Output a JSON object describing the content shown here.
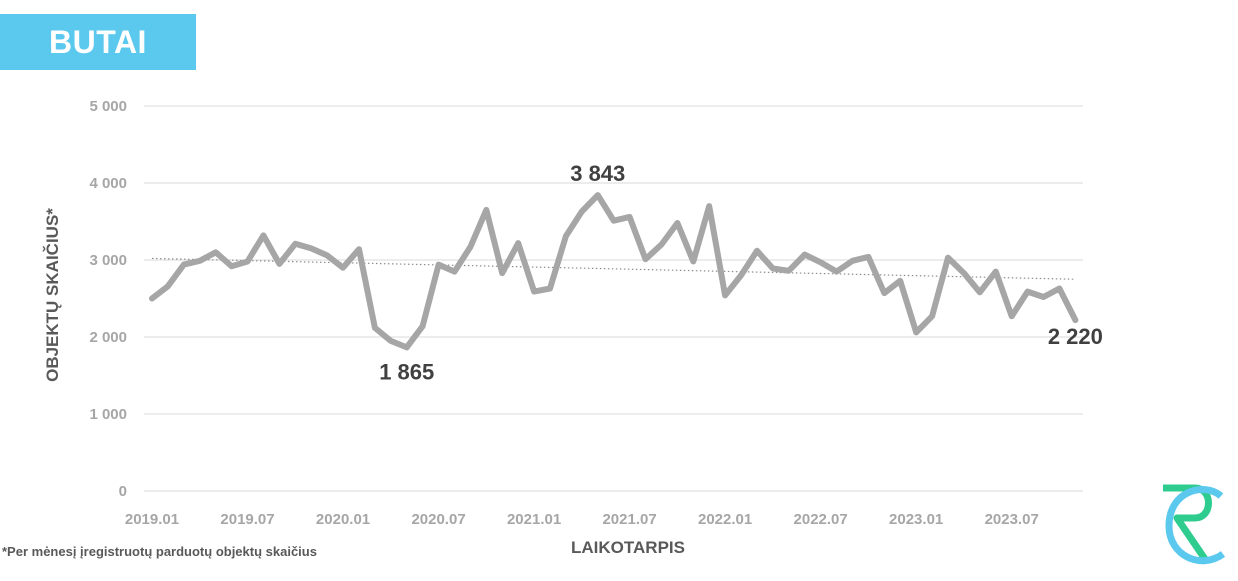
{
  "header": {
    "title": "BUTAI"
  },
  "footnote": "*Per mėnesį įregistruotų parduotų objektų skaičius",
  "logo": {
    "name": "rc-logo",
    "colors": [
      "#2ecc8f",
      "#5bc8ee"
    ]
  },
  "colors": {
    "line": "#a6a6a6",
    "trend": "#8c8c8c",
    "grid": "#d9d9d9",
    "axis_text": "#a6a6a6",
    "label_text": "#404040",
    "accent": "#5bc8ee"
  },
  "chart_data": {
    "type": "line",
    "xlabel": "LAIKOTARPIS",
    "ylabel": "OBJEKTŲ SKAIČIUS*",
    "ylim": [
      0,
      5000
    ],
    "yticks": [
      0,
      1000,
      2000,
      3000,
      4000,
      5000
    ],
    "ytick_labels": [
      "0",
      "1 000",
      "2 000",
      "3 000",
      "4 000",
      "5 000"
    ],
    "xtick_labels": [
      "2019.01",
      "2019.07",
      "2020.01",
      "2020.07",
      "2021.01",
      "2021.07",
      "2022.01",
      "2022.07",
      "2023.01",
      "2023.07"
    ],
    "grid": true,
    "legend": "none",
    "trendline": {
      "type": "linear",
      "style": "dotted",
      "start": 3020,
      "end": 2750
    },
    "x": [
      "2019.01",
      "2019.02",
      "2019.03",
      "2019.04",
      "2019.05",
      "2019.06",
      "2019.07",
      "2019.08",
      "2019.09",
      "2019.10",
      "2019.11",
      "2019.12",
      "2020.01",
      "2020.02",
      "2020.03",
      "2020.04",
      "2020.05",
      "2020.06",
      "2020.07",
      "2020.08",
      "2020.09",
      "2020.10",
      "2020.11",
      "2020.12",
      "2021.01",
      "2021.02",
      "2021.03",
      "2021.04",
      "2021.05",
      "2021.06",
      "2021.07",
      "2021.08",
      "2021.09",
      "2021.10",
      "2021.11",
      "2021.12",
      "2022.01",
      "2022.02",
      "2022.03",
      "2022.04",
      "2022.05",
      "2022.06",
      "2022.07",
      "2022.08",
      "2022.09",
      "2022.10",
      "2022.11",
      "2022.12",
      "2023.01",
      "2023.02",
      "2023.03",
      "2023.04",
      "2023.05",
      "2023.06",
      "2023.07",
      "2023.08",
      "2023.09",
      "2023.10",
      "2023.11"
    ],
    "series": [
      {
        "values": [
          2500,
          2660,
          2940,
          2990,
          3100,
          2920,
          2980,
          3320,
          2950,
          3210,
          3150,
          3060,
          2900,
          3140,
          2120,
          1950,
          1865,
          2140,
          2940,
          2850,
          3170,
          3650,
          2830,
          3220,
          2590,
          2630,
          3310,
          3630,
          3843,
          3510,
          3560,
          3010,
          3200,
          3480,
          2980,
          3700,
          2540,
          2800,
          3120,
          2890,
          2860,
          3070,
          2970,
          2850,
          2990,
          3040,
          2570,
          2730,
          2060,
          2270,
          3030,
          2830,
          2580,
          2850,
          2270,
          2590,
          2520,
          2630,
          2220
        ]
      }
    ],
    "data_labels": [
      {
        "x": "2020.05",
        "value": 1865,
        "text": "1 865"
      },
      {
        "x": "2021.05",
        "value": 3843,
        "text": "3 843"
      },
      {
        "x": "2023.11",
        "value": 2220,
        "text": "2 220"
      }
    ]
  }
}
